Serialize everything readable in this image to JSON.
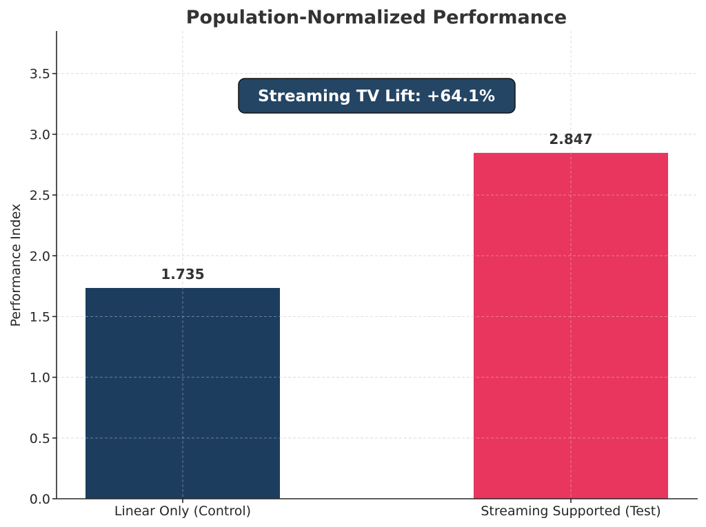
{
  "chart_data": {
    "type": "bar",
    "title": "Population-Normalized Performance",
    "xlabel": "",
    "ylabel": "Performance Index",
    "categories": [
      "Linear Only (Control)",
      "Streaming Supported (Test)"
    ],
    "values": [
      1.735,
      2.847
    ],
    "data_labels": [
      "1.735",
      "2.847"
    ],
    "colors": [
      "#1c3d5e",
      "#e8365f"
    ],
    "ylim": [
      0,
      3.85
    ],
    "yticks": [
      0.0,
      0.5,
      1.0,
      1.5,
      2.0,
      2.5,
      3.0,
      3.5
    ],
    "ytick_labels": [
      "0.0",
      "0.5",
      "1.0",
      "1.5",
      "2.0",
      "2.5",
      "3.0",
      "3.5"
    ],
    "grid": true,
    "annotation": {
      "text": "Streaming TV Lift: +64.1%",
      "background": "#244563",
      "text_color": "#ffffff"
    }
  }
}
